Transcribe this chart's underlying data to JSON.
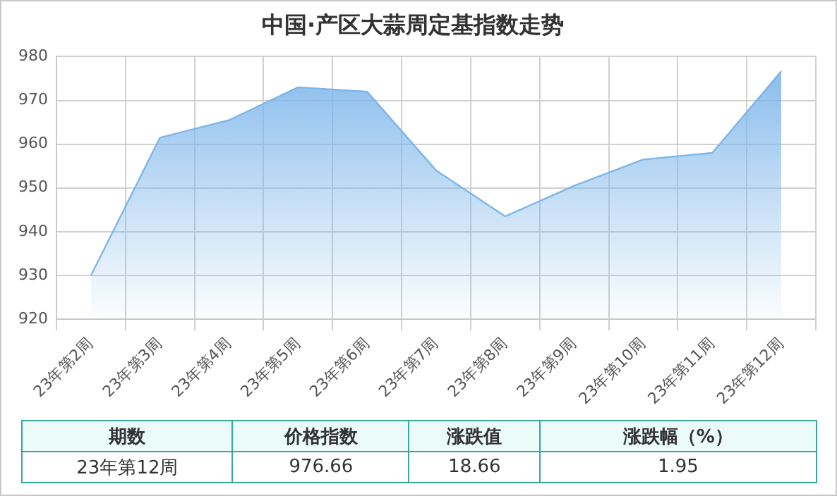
{
  "chart_data": {
    "type": "area",
    "title": "中国·产区大蒜周定基指数走势",
    "categories": [
      "23年第2周",
      "23年第3周",
      "23年第4周",
      "23年第5周",
      "23年第6周",
      "23年第7周",
      "23年第8周",
      "23年第9周",
      "23年第10周",
      "23年第11周",
      "23年第12周"
    ],
    "series": [
      {
        "color": "#7eb6ea",
        "values": [
          930,
          961.5,
          965.5,
          973,
          972,
          954,
          943.5,
          950.5,
          956.5,
          958,
          976.66
        ]
      }
    ],
    "ylim": [
      920,
      980
    ],
    "yticks": [
      920,
      930,
      940,
      950,
      960,
      970,
      980
    ],
    "grid": true,
    "legend": false,
    "annotations": [
      "期数",
      "价格指数",
      "涨跌值",
      "涨跌幅（%）",
      "23年第12周",
      "976.66",
      "18.66",
      "1.95"
    ]
  }
}
